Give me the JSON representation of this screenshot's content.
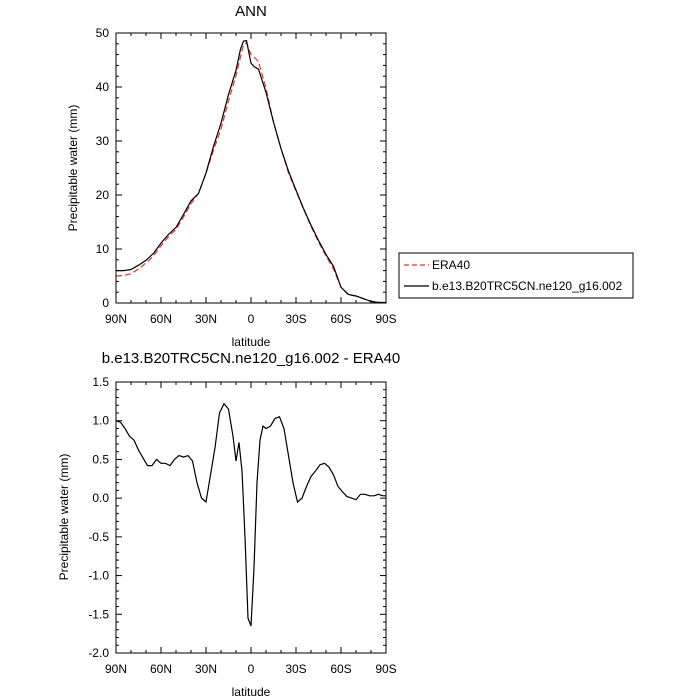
{
  "chart_data": [
    {
      "type": "line",
      "title": "ANN",
      "xlabel": "latitude",
      "ylabel": "Precipitable water (mm)",
      "xlim": [
        90,
        -90
      ],
      "ylim": [
        0,
        50
      ],
      "xticks": [
        {
          "value": 90,
          "label": "90N"
        },
        {
          "value": 60,
          "label": "60N"
        },
        {
          "value": 30,
          "label": "30N"
        },
        {
          "value": 0,
          "label": "0"
        },
        {
          "value": -30,
          "label": "30S"
        },
        {
          "value": -60,
          "label": "60S"
        },
        {
          "value": -90,
          "label": "90S"
        }
      ],
      "yticks": [
        {
          "value": 0,
          "label": "0"
        },
        {
          "value": 10,
          "label": "10"
        },
        {
          "value": 20,
          "label": "20"
        },
        {
          "value": 30,
          "label": "30"
        },
        {
          "value": 40,
          "label": "40"
        },
        {
          "value": 50,
          "label": "50"
        }
      ],
      "legend": {
        "placement": "right"
      },
      "series": [
        {
          "name": "ERA40",
          "color": "#e8322c",
          "dash": "dashed",
          "x": [
            90,
            85,
            80,
            75,
            70,
            65,
            60,
            55,
            50,
            45,
            40,
            35,
            30,
            25,
            20,
            15,
            10,
            7,
            5,
            3,
            0,
            -2,
            -5,
            -10,
            -15,
            -20,
            -25,
            -30,
            -35,
            -40,
            -45,
            -50,
            -55,
            -60,
            -65,
            -70,
            -75,
            -80,
            -85,
            -90
          ],
          "y": [
            5.0,
            5.1,
            5.4,
            6.3,
            7.4,
            8.7,
            10.6,
            12.3,
            13.6,
            15.9,
            18.4,
            20.3,
            24.0,
            28.3,
            32.2,
            37.4,
            42.1,
            45.6,
            47.8,
            48.2,
            46.0,
            45.6,
            44.7,
            39.8,
            33.5,
            28.6,
            24.1,
            20.7,
            17.4,
            14.2,
            11.3,
            8.7,
            6.3,
            2.9,
            1.5,
            1.3,
            0.8,
            0.3,
            0.1,
            0.1
          ]
        },
        {
          "name": "b.e13.B20TRC5CN.ne120_g16.002",
          "color": "#000000",
          "dash": "solid",
          "x": [
            90,
            85,
            80,
            75,
            70,
            65,
            60,
            55,
            50,
            45,
            40,
            35,
            30,
            25,
            20,
            15,
            10,
            7,
            5,
            3,
            0,
            -2,
            -5,
            -10,
            -15,
            -20,
            -25,
            -30,
            -35,
            -40,
            -45,
            -50,
            -55,
            -60,
            -65,
            -70,
            -75,
            -80,
            -85,
            -90
          ],
          "y": [
            6.0,
            6.0,
            6.2,
            7.0,
            7.9,
            9.2,
            11.1,
            12.7,
            14.0,
            16.4,
            18.9,
            20.3,
            24.1,
            29.0,
            33.3,
            38.6,
            43.1,
            47.0,
            48.5,
            48.6,
            44.4,
            43.8,
            43.3,
            39.0,
            33.5,
            28.6,
            24.4,
            20.9,
            17.5,
            14.4,
            11.6,
            9.0,
            6.8,
            2.9,
            1.6,
            1.3,
            0.8,
            0.3,
            0.1,
            0.1
          ]
        }
      ]
    },
    {
      "type": "line",
      "title": "b.e13.B20TRC5CN.ne120_g16.002 - ERA40",
      "xlabel": "latitude",
      "ylabel": "Precipitable water (mm)",
      "xlim": [
        90,
        -90
      ],
      "ylim": [
        -2.0,
        1.5
      ],
      "xticks": [
        {
          "value": 90,
          "label": "90N"
        },
        {
          "value": 60,
          "label": "60N"
        },
        {
          "value": 30,
          "label": "30N"
        },
        {
          "value": 0,
          "label": "0"
        },
        {
          "value": -30,
          "label": "30S"
        },
        {
          "value": -60,
          "label": "60S"
        },
        {
          "value": -90,
          "label": "90S"
        }
      ],
      "yticks": [
        {
          "value": 1.5,
          "label": "1.5"
        },
        {
          "value": 1.0,
          "label": "1.0"
        },
        {
          "value": 0.5,
          "label": "0.5"
        },
        {
          "value": 0.0,
          "label": "0.0"
        },
        {
          "value": -0.5,
          "label": "-0.5"
        },
        {
          "value": -1.0,
          "label": "-1.0"
        },
        {
          "value": -1.5,
          "label": "-1.5"
        },
        {
          "value": -2.0,
          "label": "-2.0"
        }
      ],
      "series": [
        {
          "color": "#000000",
          "dash": "solid",
          "x": [
            90,
            87,
            84,
            81,
            78,
            75,
            72,
            69,
            66,
            63,
            60,
            57,
            54,
            51,
            48,
            45,
            42,
            39,
            36,
            33,
            30,
            27,
            24,
            21,
            18,
            15,
            12,
            10,
            8,
            6,
            4,
            2,
            0,
            -2,
            -4,
            -6,
            -8,
            -10,
            -13,
            -16,
            -19,
            -22,
            -25,
            -28,
            -31,
            -34,
            -37,
            -40,
            -43,
            -46,
            -49,
            -52,
            -55,
            -58,
            -61,
            -64,
            -67,
            -70,
            -73,
            -76,
            -79,
            -82,
            -85,
            -88,
            -90
          ],
          "y": [
            1.0,
            0.98,
            0.9,
            0.8,
            0.75,
            0.62,
            0.52,
            0.42,
            0.42,
            0.5,
            0.45,
            0.45,
            0.42,
            0.5,
            0.55,
            0.53,
            0.55,
            0.48,
            0.2,
            0.0,
            -0.05,
            0.3,
            0.65,
            1.1,
            1.22,
            1.15,
            0.8,
            0.48,
            0.72,
            0.35,
            -0.5,
            -1.55,
            -1.65,
            -0.9,
            0.2,
            0.75,
            0.93,
            0.9,
            0.93,
            1.03,
            1.05,
            0.9,
            0.55,
            0.2,
            -0.05,
            0.0,
            0.15,
            0.28,
            0.35,
            0.43,
            0.45,
            0.4,
            0.3,
            0.15,
            0.08,
            0.02,
            0.0,
            -0.02,
            0.05,
            0.05,
            0.03,
            0.03,
            0.05,
            0.03,
            0.03
          ]
        }
      ]
    }
  ]
}
